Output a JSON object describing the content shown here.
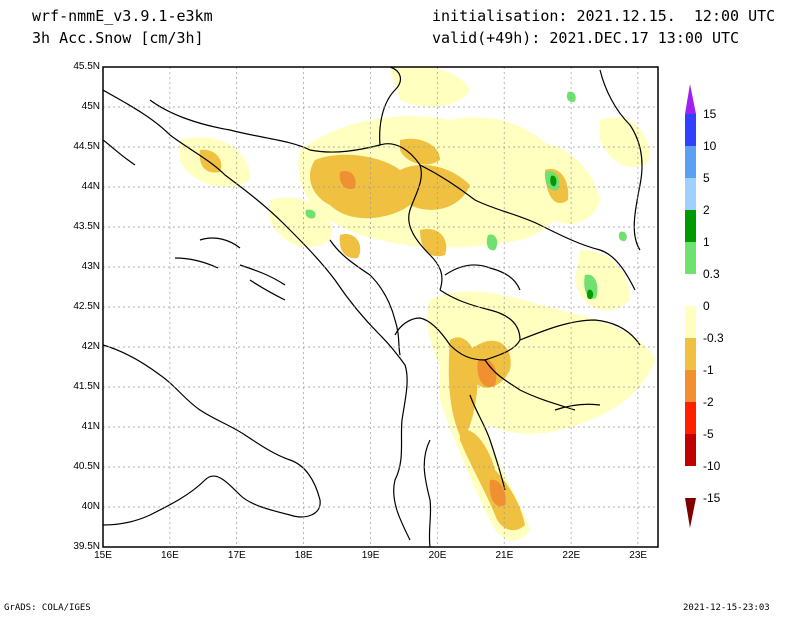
{
  "header": {
    "model": "wrf-nmmE_v3.9.1-e3km",
    "field": "3h Acc.Snow [cm/3h]",
    "init": "initialisation: 2021.12.15.  12:00 UTC",
    "valid": "valid(+49h): 2021.DEC.17 13:00 UTC"
  },
  "axes": {
    "lat_labels": [
      "45.5N",
      "45N",
      "44.5N",
      "44N",
      "43.5N",
      "43N",
      "42.5N",
      "42N",
      "41.5N",
      "41N",
      "40.5N",
      "40N",
      "39.5N"
    ],
    "lon_labels": [
      "15E",
      "16E",
      "17E",
      "18E",
      "19E",
      "20E",
      "21E",
      "22E",
      "23E"
    ]
  },
  "colorbar": {
    "labels": [
      "15",
      "10",
      "5",
      "2",
      "1",
      "0.3",
      "0",
      "-0.3",
      "-1",
      "-2",
      "-5",
      "-10",
      "-15"
    ],
    "colors": [
      "#a020f0",
      "#3040ff",
      "#5ca0f0",
      "#a0d0ff",
      "#009a00",
      "#70e070",
      "#ffffff",
      "#ffffc0",
      "#f0c040",
      "#f09030",
      "#ff2000",
      "#c00000",
      "#800000"
    ]
  },
  "footer": {
    "left": "GrADS: COLA/IGES",
    "right": "2021-12-15-23:03"
  },
  "map_data": {
    "lon_range": [
      15,
      23.3
    ],
    "lat_range": [
      39.5,
      45.5
    ]
  }
}
